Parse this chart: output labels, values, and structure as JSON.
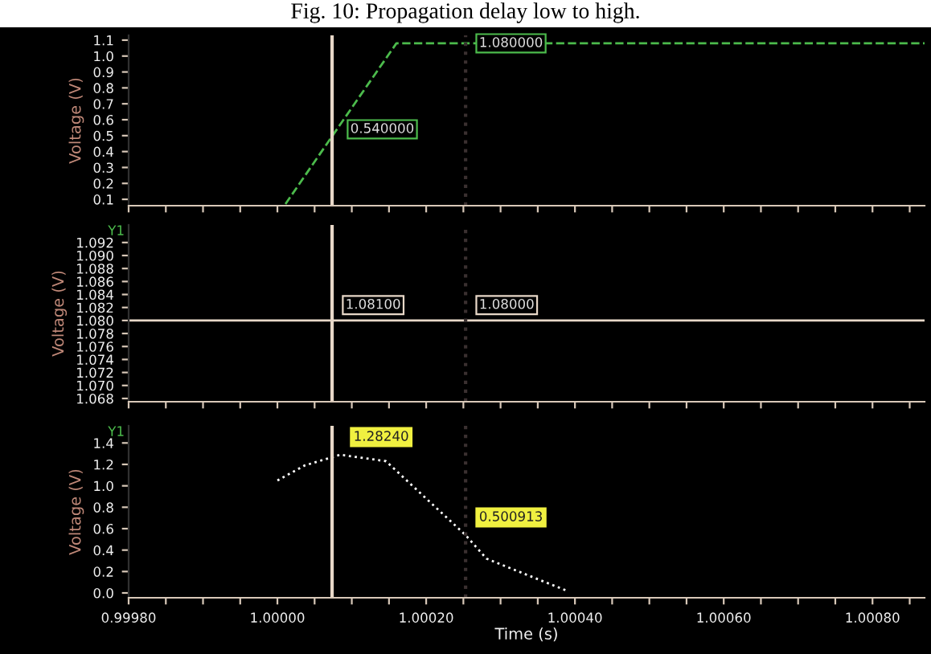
{
  "chart_data": [
    {
      "type": "line",
      "title": "Fig. 10: Propagation delay low to high.",
      "ylabel": "Voltage (V)",
      "line_style": "dashed",
      "grid": false,
      "tick_labels": "y",
      "series": [
        {
          "color": "#4cbb4c",
          "x": [
            1.0000108,
            1.00008,
            1.00016,
            1.00087
          ],
          "values": [
            0.07,
            0.54,
            1.08,
            1.08
          ]
        }
      ],
      "xlim": [
        0.9998,
        1.00087
      ],
      "ylim": [
        0.06,
        1.13
      ],
      "xticks": [
        {
          "value": 0.9998,
          "label": null
        },
        {
          "value": 0.99985,
          "label": null
        },
        {
          "value": 0.9999,
          "label": null
        },
        {
          "value": 0.99995,
          "label": null
        },
        {
          "value": 1.0,
          "label": null
        },
        {
          "value": 1.00005,
          "label": null
        },
        {
          "value": 1.0001,
          "label": null
        },
        {
          "value": 1.00015,
          "label": null
        },
        {
          "value": 1.0002,
          "label": null
        },
        {
          "value": 1.00025,
          "label": null
        },
        {
          "value": 1.0003,
          "label": null
        },
        {
          "value": 1.00035,
          "label": null
        },
        {
          "value": 1.0004,
          "label": null
        },
        {
          "value": 1.00045,
          "label": null
        },
        {
          "value": 1.0005,
          "label": null
        },
        {
          "value": 1.00055,
          "label": null
        },
        {
          "value": 1.0006,
          "label": null
        },
        {
          "value": 1.00065,
          "label": null
        },
        {
          "value": 1.0007,
          "label": null
        },
        {
          "value": 1.00075,
          "label": null
        },
        {
          "value": 1.0008,
          "label": null
        },
        {
          "value": 1.00085,
          "label": null
        }
      ],
      "yticks": [
        0.1,
        0.2,
        0.3,
        0.4,
        0.5,
        0.6,
        0.7,
        0.8,
        0.9,
        {
          "value": 1.0,
          "label": "1.0"
        },
        1.1
      ],
      "ref_lines": [
        {
          "axis": "x",
          "value": 1.0000735,
          "color": "#e8d8c8"
        },
        {
          "axis": "x",
          "value": 1.000253,
          "color": "#3a3030",
          "line_style": "dotted"
        }
      ],
      "annotations": [
        {
          "text": "0.540000",
          "x": 1.00008,
          "y": 0.54
        },
        {
          "text": "1.080000",
          "x": 1.000253,
          "y": 1.08
        }
      ]
    },
    {
      "type": "line",
      "ylabel": "Voltage (V)",
      "line_style": "solid",
      "grid": false,
      "tick_labels": "y",
      "series": [
        {
          "color": "#e8d8c8",
          "x": [
            0.9998,
            1.00087
          ],
          "values": [
            1.08,
            1.08
          ]
        }
      ],
      "xlim": [
        0.9998,
        1.00087
      ],
      "ylim": [
        1.0675,
        1.0947
      ],
      "xticks": [
        {
          "value": 0.9998,
          "label": null
        },
        {
          "value": 0.99985,
          "label": null
        },
        {
          "value": 0.9999,
          "label": null
        },
        {
          "value": 0.99995,
          "label": null
        },
        {
          "value": 1.0,
          "label": null
        },
        {
          "value": 1.00005,
          "label": null
        },
        {
          "value": 1.0001,
          "label": null
        },
        {
          "value": 1.00015,
          "label": null
        },
        {
          "value": 1.0002,
          "label": null
        },
        {
          "value": 1.00025,
          "label": null
        },
        {
          "value": 1.0003,
          "label": null
        },
        {
          "value": 1.00035,
          "label": null
        },
        {
          "value": 1.0004,
          "label": null
        },
        {
          "value": 1.00045,
          "label": null
        },
        {
          "value": 1.0005,
          "label": null
        },
        {
          "value": 1.00055,
          "label": null
        },
        {
          "value": 1.0006,
          "label": null
        },
        {
          "value": 1.00065,
          "label": null
        },
        {
          "value": 1.0007,
          "label": null
        },
        {
          "value": 1.00075,
          "label": null
        },
        {
          "value": 1.0008,
          "label": null
        },
        {
          "value": 1.00085,
          "label": null
        }
      ],
      "yticks": [
        1.068,
        {
          "value": 1.07,
          "label": "1.070"
        },
        1.072,
        1.074,
        1.076,
        1.078,
        {
          "value": 1.08,
          "label": "1.080"
        },
        1.082,
        1.084,
        1.086,
        1.088,
        {
          "value": 1.09,
          "label": "1.090"
        },
        1.092
      ],
      "ref_lines": [
        {
          "axis": "x",
          "value": 1.0000735,
          "color": "#e8d8c8"
        },
        {
          "axis": "x",
          "value": 1.000253,
          "color": "#3a3030",
          "line_style": "dotted"
        }
      ],
      "annotations": [
        "Y1",
        {
          "text": "1.08100",
          "x": 1.0000735,
          "y": 1.08
        },
        {
          "text": "1.08000",
          "x": 1.000253,
          "y": 1.08
        }
      ]
    },
    {
      "type": "line",
      "xlabel": "Time (s)",
      "ylabel": "Voltage (V)",
      "line_style": "dotted",
      "grid": false,
      "series": [
        {
          "color": "#ffffff",
          "x": [
            1.0,
            1.0000367,
            1.0000843,
            1.0001459,
            1.000253,
            1.0002811,
            1.0003892
          ],
          "values": [
            1.05,
            1.19,
            1.29,
            1.23,
            0.54,
            0.32,
            0.02
          ]
        }
      ],
      "xlim": [
        0.9998,
        1.00087
      ],
      "ylim": [
        -0.045,
        1.56
      ],
      "xticks": [
        {
          "value": 0.9998,
          "label": "0.99980"
        },
        {
          "value": 0.99985,
          "label": null
        },
        {
          "value": 0.9999,
          "label": null
        },
        {
          "value": 0.99995,
          "label": null
        },
        {
          "value": 1.0,
          "label": "1.00000"
        },
        {
          "value": 1.00005,
          "label": null
        },
        {
          "value": 1.0001,
          "label": null
        },
        {
          "value": 1.00015,
          "label": null
        },
        {
          "value": 1.0002,
          "label": "1.00020"
        },
        {
          "value": 1.00025,
          "label": null
        },
        {
          "value": 1.0003,
          "label": null
        },
        {
          "value": 1.00035,
          "label": null
        },
        {
          "value": 1.0004,
          "label": "1.00040"
        },
        {
          "value": 1.00045,
          "label": null
        },
        {
          "value": 1.0005,
          "label": null
        },
        {
          "value": 1.00055,
          "label": null
        },
        {
          "value": 1.0006,
          "label": "1.00060"
        },
        {
          "value": 1.00065,
          "label": null
        },
        {
          "value": 1.0007,
          "label": null
        },
        {
          "value": 1.00075,
          "label": null
        },
        {
          "value": 1.0008,
          "label": "1.00080"
        },
        {
          "value": 1.00085,
          "label": null
        }
      ],
      "yticks": [
        {
          "value": 0.0,
          "label": "0.0"
        },
        0.2,
        0.4,
        0.6,
        0.8,
        {
          "value": 1.0,
          "label": "1.0"
        },
        1.2,
        1.4
      ],
      "ref_lines": [
        {
          "axis": "x",
          "value": 1.0000735,
          "color": "#e8d8c8"
        },
        {
          "axis": "x",
          "value": 1.000253,
          "color": "#3a3030",
          "line_style": "dotted"
        }
      ],
      "annotations": [
        "Y1",
        {
          "text": "1.28240",
          "x": 1.0000843,
          "y": 1.29
        },
        {
          "text": "0.500913",
          "x": 1.000253,
          "y": 0.54
        }
      ]
    }
  ]
}
